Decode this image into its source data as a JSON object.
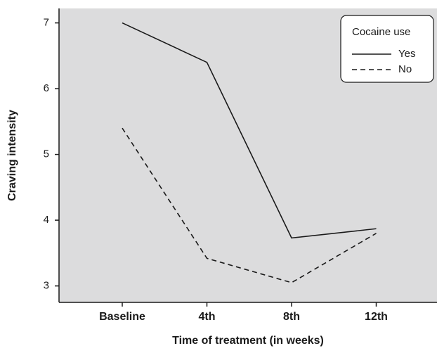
{
  "chart_data": {
    "type": "line",
    "x_label": "Time of treatment (in weeks)",
    "y_label": "Craving intensity",
    "categories": [
      "Baseline",
      "4th",
      "8th",
      "12th"
    ],
    "series": [
      {
        "name": "Yes",
        "color": "#1a1a1a",
        "linestyle": "solid",
        "values": [
          7.0,
          6.4,
          3.73,
          3.87
        ]
      },
      {
        "name": "No",
        "color": "#1a1a1a",
        "linestyle": "dashed",
        "values": [
          5.4,
          3.42,
          3.05,
          3.8
        ]
      }
    ],
    "ylim": [
      2.75,
      7.22
    ],
    "yticks": [
      3,
      4,
      5,
      6,
      7
    ],
    "legend": {
      "title": "Cocaine use",
      "position": "upper right"
    },
    "background": "#dcdcdd"
  }
}
